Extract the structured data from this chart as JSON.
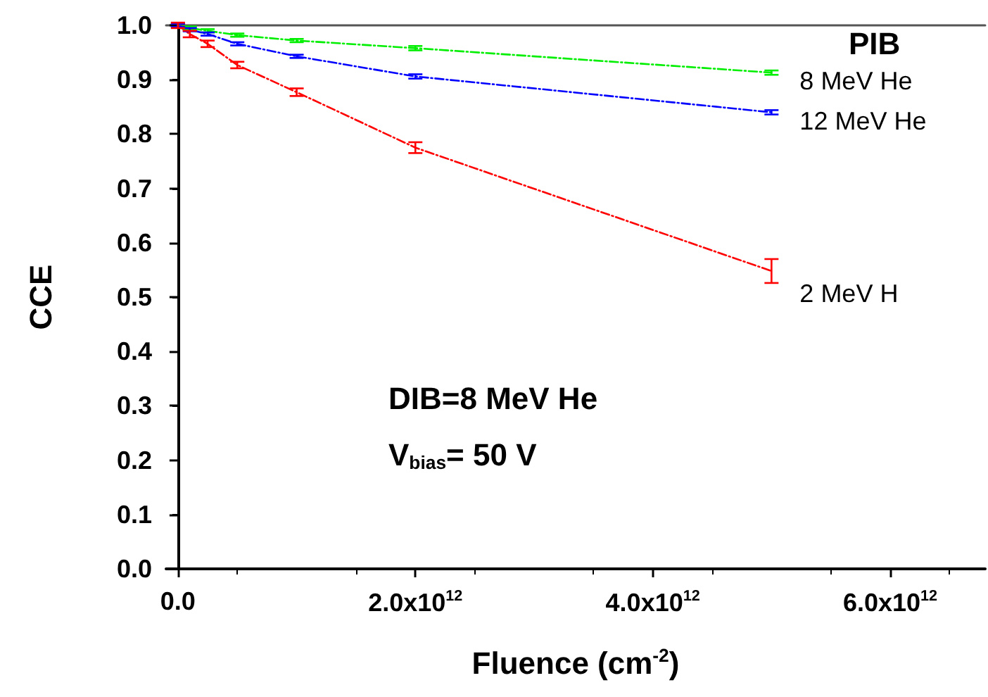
{
  "chart_data": {
    "type": "line",
    "xlabel": "Fluence (cm$^{-2}$)",
    "ylabel": "CCE",
    "legend_title": "PIB",
    "x": [
      0,
      100000000000.0,
      250000000000.0,
      500000000000.0,
      1000000000000.0,
      2000000000000.0,
      5000000000000.0
    ],
    "series": [
      {
        "name": "8 MeV He",
        "color": "#00ee00",
        "values": [
          1.0,
          0.995,
          0.99,
          0.982,
          0.972,
          0.958,
          0.913
        ],
        "errors": [
          0.003,
          0.003,
          0.003,
          0.003,
          0.003,
          0.004,
          0.004
        ]
      },
      {
        "name": "12 MeV He",
        "color": "#0000ff",
        "values": [
          1.0,
          0.992,
          0.984,
          0.966,
          0.943,
          0.906,
          0.84
        ],
        "errors": [
          0.003,
          0.003,
          0.003,
          0.003,
          0.003,
          0.004,
          0.004
        ]
      },
      {
        "name": "2 MeV H",
        "color": "#ff0000",
        "values": [
          1.0,
          0.984,
          0.966,
          0.927,
          0.877,
          0.775,
          0.548
        ],
        "errors": [
          0.005,
          0.006,
          0.006,
          0.006,
          0.007,
          0.01,
          0.022
        ]
      }
    ],
    "xlim": [
      -100000000000.0,
      6800000000000.0
    ],
    "xticks": [
      {
        "value": 0,
        "label": "0.0"
      },
      {
        "value": 2000000000000.0,
        "label": "2.0x10$^{12}$"
      },
      {
        "value": 4000000000000.0,
        "label": "4.0x10$^{12}$"
      },
      {
        "value": 6000000000000.0,
        "label": "6.0x10$^{12}$"
      }
    ],
    "ylim": [
      0,
      1.0
    ],
    "yticks": [
      {
        "value": 0,
        "label": "0.0"
      },
      {
        "value": 0.1,
        "label": "0.1"
      },
      {
        "value": 0.2,
        "label": "0.2"
      },
      {
        "value": 0.3,
        "label": "0.3"
      },
      {
        "value": 0.4,
        "label": "0.4"
      },
      {
        "value": 0.5,
        "label": "0.5"
      },
      {
        "value": 0.6,
        "label": "0.6"
      },
      {
        "value": 0.7,
        "label": "0.7"
      },
      {
        "value": 0.8,
        "label": "0.8"
      },
      {
        "value": 0.9,
        "label": "0.9"
      },
      {
        "value": 1.0,
        "label": "1.0"
      }
    ],
    "annotations": [
      "DIB=8 MeV He",
      "V$_{bias}$= 50 V"
    ],
    "grid": false,
    "legend": false,
    "marker": "none",
    "line_style": "dashed"
  }
}
